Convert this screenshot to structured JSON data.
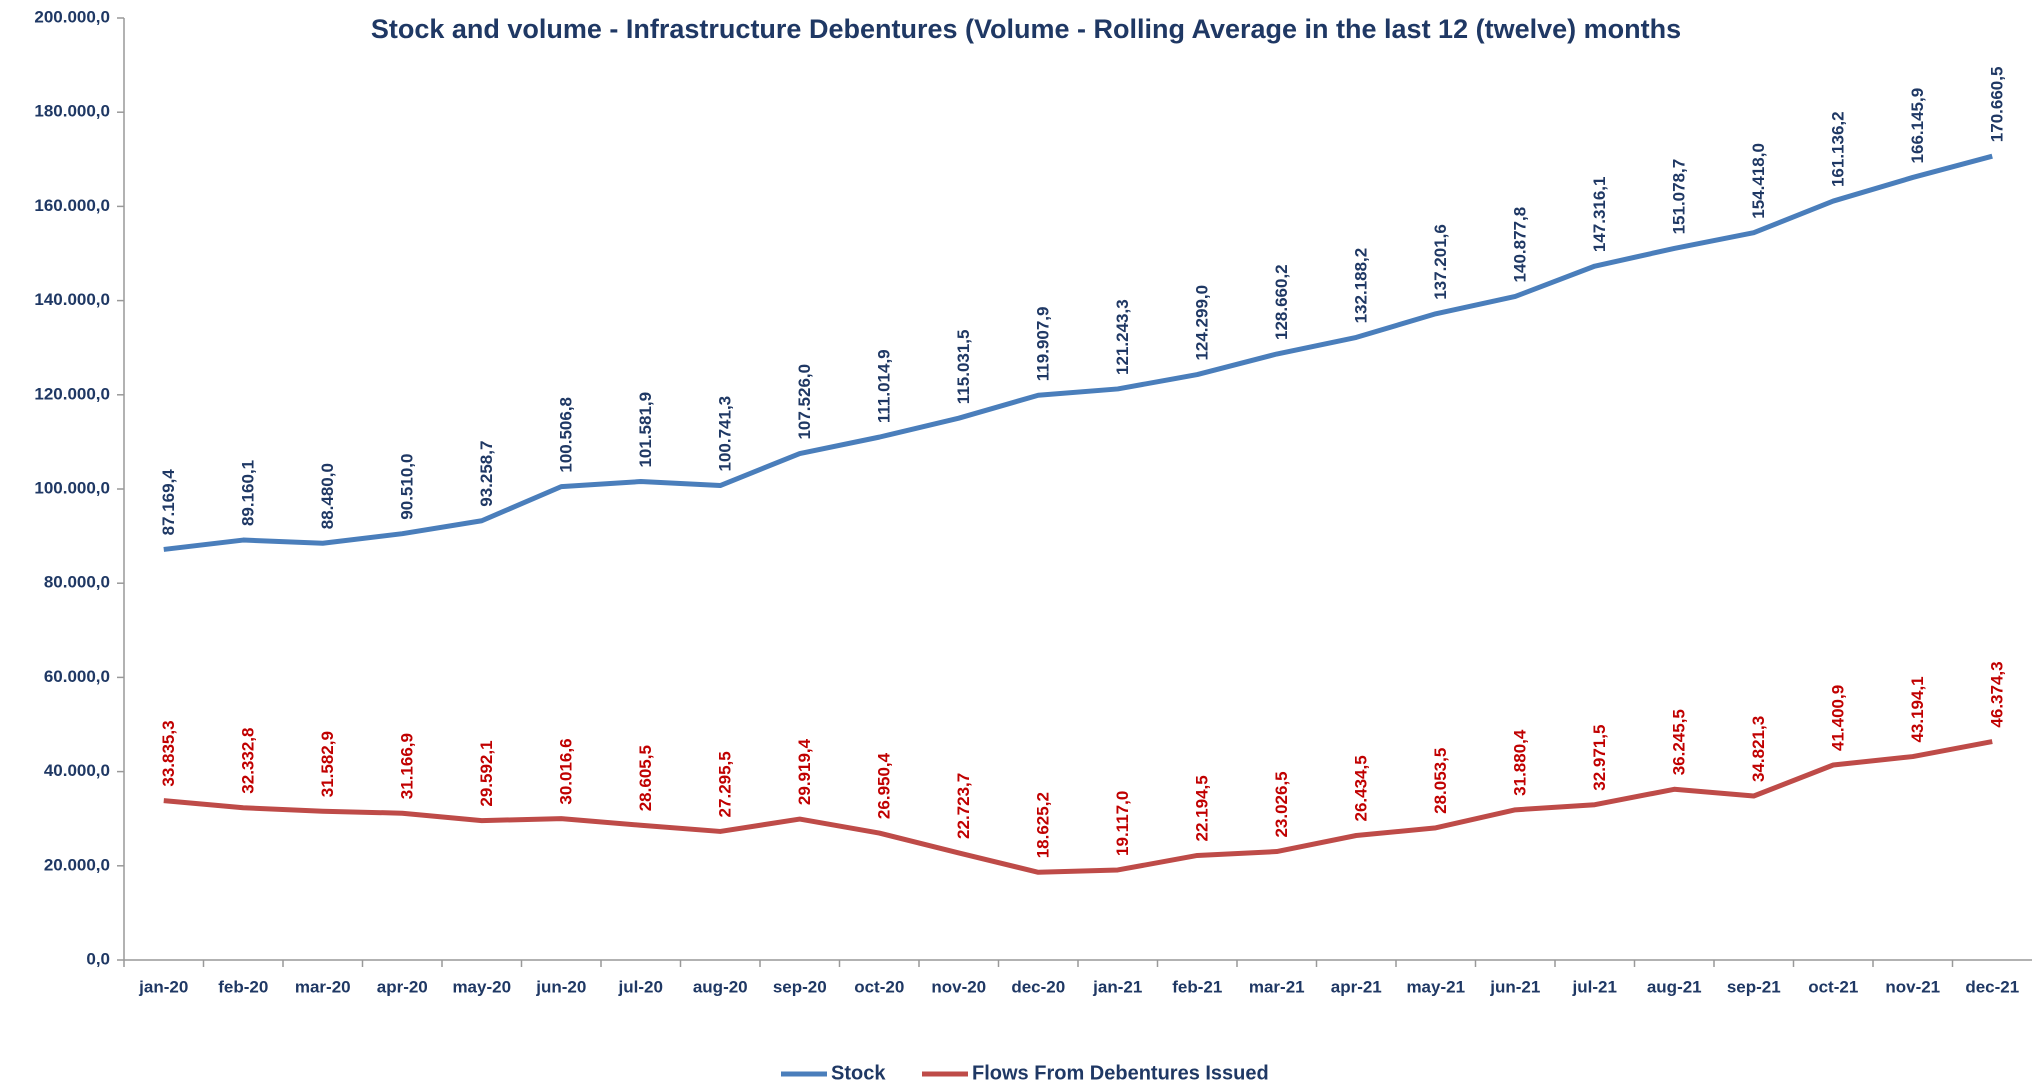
{
  "chart_data": {
    "type": "line",
    "title": "Stock and volume - Infrastructure Debentures (Volume - Rolling Average in the last 12 (twelve) months",
    "categories": [
      "jan-20",
      "feb-20",
      "mar-20",
      "apr-20",
      "may-20",
      "jun-20",
      "jul-20",
      "aug-20",
      "sep-20",
      "oct-20",
      "nov-20",
      "dec-20",
      "jan-21",
      "feb-21",
      "mar-21",
      "apr-21",
      "may-21",
      "jun-21",
      "jul-21",
      "aug-21",
      "sep-21",
      "oct-21",
      "nov-21",
      "dec-21"
    ],
    "series": [
      {
        "name": "Stock",
        "color": "#4a7ebb",
        "label_color": "#1f3864",
        "values": [
          87169.4,
          89160.1,
          88480.0,
          90510.0,
          93258.7,
          100506.8,
          101581.9,
          100741.3,
          107526.0,
          111014.9,
          115031.5,
          119907.9,
          121243.3,
          124299.0,
          128660.2,
          132188.2,
          137201.6,
          140877.8,
          147316.1,
          151078.7,
          154418.0,
          161136.2,
          166145.9,
          170660.5
        ],
        "value_labels": [
          "87.169,4",
          "89.160,1",
          "88.480,0",
          "90.510,0",
          "93.258,7",
          "100.506,8",
          "101.581,9",
          "100.741,3",
          "107.526,0",
          "111.014,9",
          "115.031,5",
          "119.907,9",
          "121.243,3",
          "124.299,0",
          "128.660,2",
          "132.188,2",
          "137.201,6",
          "140.877,8",
          "147.316,1",
          "151.078,7",
          "154.418,0",
          "161.136,2",
          "166.145,9",
          "170.660,5"
        ]
      },
      {
        "name": "Flows From Debentures Issued",
        "color": "#be4b48",
        "label_color": "#c00000",
        "values": [
          33835.3,
          32332.8,
          31582.9,
          31166.9,
          29592.1,
          30016.6,
          28605.5,
          27295.5,
          29919.4,
          26950.4,
          22723.7,
          18625.2,
          19117.0,
          22194.5,
          23026.5,
          26434.5,
          28053.5,
          31880.4,
          32971.5,
          36245.5,
          34821.3,
          41400.9,
          43194.1,
          46374.3
        ],
        "value_labels": [
          "33.835,3",
          "32.332,8",
          "31.582,9",
          "31.166,9",
          "29.592,1",
          "30.016,6",
          "28.605,5",
          "27.295,5",
          "29.919,4",
          "26.950,4",
          "22.723,7",
          "18.625,2",
          "19.117,0",
          "22.194,5",
          "23.026,5",
          "26.434,5",
          "28.053,5",
          "31.880,4",
          "32.971,5",
          "36.245,5",
          "34.821,3",
          "41.400,9",
          "43.194,1",
          "46.374,3"
        ]
      }
    ],
    "ylim": [
      0,
      200000
    ],
    "yticks": [
      {
        "value": 0,
        "label": "0,0"
      },
      {
        "value": 20000,
        "label": "20.000,0"
      },
      {
        "value": 40000,
        "label": "40.000,0"
      },
      {
        "value": 60000,
        "label": "60.000,0"
      },
      {
        "value": 80000,
        "label": "80.000,0"
      },
      {
        "value": 100000,
        "label": "100.000,0"
      },
      {
        "value": 120000,
        "label": "120.000,0"
      },
      {
        "value": 140000,
        "label": "140.000,0"
      },
      {
        "value": 160000,
        "label": "160.000,0"
      },
      {
        "value": 180000,
        "label": "180.000,0"
      },
      {
        "value": 200000,
        "label": "200.000,0"
      }
    ],
    "grid": false,
    "legend": "bottom"
  }
}
